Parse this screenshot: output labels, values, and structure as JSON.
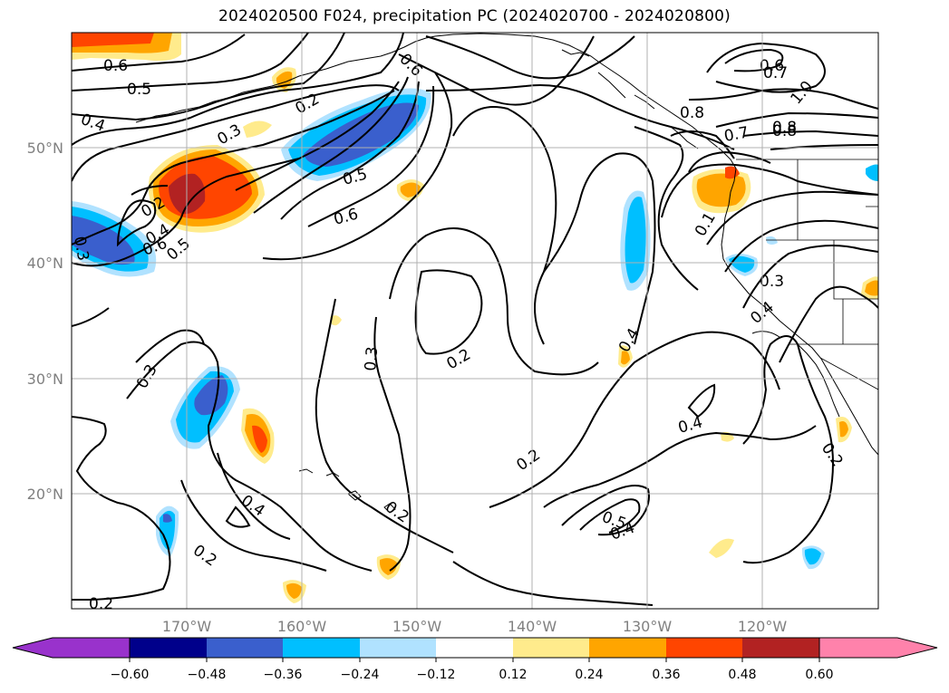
{
  "title": "2024020500 F024, precipitation PC (2024020700 - 2024020800)",
  "chart_data": {
    "type": "contour map",
    "projection": "lat-lon",
    "lon_range": [
      -180,
      -110
    ],
    "lat_range": [
      10,
      60
    ],
    "grid": true,
    "lon_ticks": [
      "170°W",
      "160°W",
      "150°W",
      "140°W",
      "130°W",
      "120°W"
    ],
    "lat_ticks": [
      "20°N",
      "30°N",
      "40°N",
      "50°N"
    ],
    "contour_labels": [
      "0.6",
      "0.5",
      "0.4",
      "0.3",
      "0.2",
      "0.5",
      "0.6",
      "0.6",
      "0.7",
      "0.8",
      "1.0",
      "0.8",
      "0.7",
      "0.8",
      "0.6",
      "0.5",
      "0.6",
      "0.3",
      "0.4",
      "0.2",
      "0.3",
      "0.4",
      "0.2",
      "0.2",
      "0.3",
      "0.4",
      "0.2",
      "0.4",
      "0.2",
      "0.5",
      "0.4",
      "0.1",
      "0.3",
      "0.4",
      "0.2",
      "0.2"
    ],
    "colorbar": {
      "ticks": [
        "−0.60",
        "−0.48",
        "−0.36",
        "−0.24",
        "−0.12",
        "0.12",
        "0.24",
        "0.36",
        "0.48",
        "0.60"
      ],
      "colors": [
        "#9932cc",
        "#00008b",
        "#3a5fcd",
        "#00bfff",
        "#b0e2ff",
        "#ffffff",
        "#ffeb8c",
        "#ffa500",
        "#ff4500",
        "#b22222",
        "#ff82ab"
      ],
      "extend": "both"
    }
  }
}
